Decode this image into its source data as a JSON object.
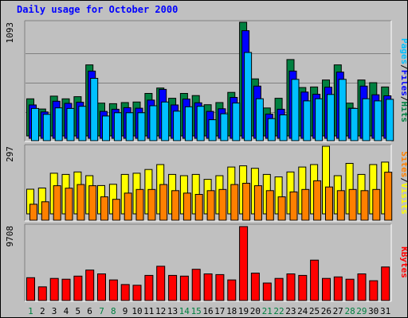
{
  "title": "Daily usage for October 2000",
  "colors": {
    "hits": "#008040",
    "files": "#0000ff",
    "pages": "#00c0ff",
    "visits": "#ffff00",
    "sites": "#ff8000",
    "kbytes": "#ff0000",
    "weekday_label": "#000000",
    "weekend_label": "#008040",
    "background": "#c0c0c0",
    "plot_bg": "#c0c0c0",
    "title": "#0000ff"
  },
  "chart_data": [
    {
      "type": "bar",
      "panel": "hits_files_pages",
      "ymax_label": "1093",
      "ylim": [
        0,
        1093
      ],
      "categories": [
        "1",
        "2",
        "3",
        "4",
        "5",
        "6",
        "7",
        "8",
        "9",
        "10",
        "11",
        "12",
        "13",
        "14",
        "15",
        "16",
        "17",
        "18",
        "19",
        "20",
        "21",
        "22",
        "23",
        "24",
        "25",
        "26",
        "27",
        "28",
        "29",
        "30",
        "31"
      ],
      "weekend": [
        1,
        7,
        8,
        14,
        15,
        21,
        22,
        28,
        29
      ],
      "legend": [
        {
          "text": "Pages",
          "color": "#00c0ff"
        },
        {
          "text": "/",
          "color": "#000000"
        },
        {
          "text": "Files",
          "color": "#0000ff"
        },
        {
          "text": "/",
          "color": "#000000"
        },
        {
          "text": "Hits",
          "color": "#008040"
        }
      ],
      "series": [
        {
          "name": "Hits",
          "color": "#008040",
          "values": [
            345,
            250,
            370,
            345,
            365,
            660,
            305,
            300,
            310,
            315,
            395,
            445,
            350,
            395,
            375,
            290,
            310,
            405,
            1093,
            530,
            260,
            350,
            710,
            450,
            455,
            520,
            660,
            305,
            520,
            495,
            455
          ]
        },
        {
          "name": "Files",
          "color": "#0000ff",
          "values": [
            310,
            245,
            345,
            325,
            335,
            625,
            250,
            270,
            285,
            280,
            355,
            455,
            310,
            365,
            330,
            250,
            275,
            380,
            1000,
            485,
            225,
            270,
            625,
            430,
            410,
            475,
            615,
            280,
            485,
            405,
            395
          ]
        },
        {
          "name": "Pages",
          "color": "#00c0ff",
          "values": [
            300,
            245,
            305,
            300,
            320,
            580,
            230,
            260,
            260,
            260,
            325,
            360,
            275,
            315,
            320,
            195,
            250,
            350,
            820,
            390,
            205,
            240,
            570,
            370,
            390,
            430,
            570,
            300,
            390,
            370,
            385
          ]
        }
      ]
    },
    {
      "type": "bar",
      "panel": "visits_sites",
      "ymax_label": "297",
      "ylim": [
        0,
        297
      ],
      "categories": [
        "1",
        "2",
        "3",
        "4",
        "5",
        "6",
        "7",
        "8",
        "9",
        "10",
        "11",
        "12",
        "13",
        "14",
        "15",
        "16",
        "17",
        "18",
        "19",
        "20",
        "21",
        "22",
        "23",
        "24",
        "25",
        "26",
        "27",
        "28",
        "29",
        "30",
        "31"
      ],
      "legend": [
        {
          "text": "Sites",
          "color": "#ff8000"
        },
        {
          "text": "/",
          "color": "#000000"
        },
        {
          "text": "Visits",
          "color": "#ffff00"
        }
      ],
      "series": [
        {
          "name": "Visits",
          "color": "#ffff00",
          "values": [
            100,
            105,
            165,
            160,
            170,
            155,
            115,
            120,
            160,
            165,
            180,
            200,
            160,
            155,
            160,
            140,
            155,
            190,
            195,
            185,
            160,
            150,
            170,
            190,
            200,
            297,
            155,
            205,
            160,
            200,
            210
          ]
        },
        {
          "name": "Sites",
          "color": "#ff8000",
          "values": [
            65,
            75,
            140,
            130,
            145,
            140,
            95,
            85,
            110,
            125,
            125,
            145,
            120,
            110,
            105,
            120,
            125,
            145,
            150,
            140,
            120,
            95,
            115,
            125,
            160,
            135,
            120,
            125,
            120,
            125,
            195
          ]
        }
      ]
    },
    {
      "type": "bar",
      "panel": "kbytes",
      "ymax_label": "9708",
      "ylim": [
        0,
        9708
      ],
      "categories": [
        "1",
        "2",
        "3",
        "4",
        "5",
        "6",
        "7",
        "8",
        "9",
        "10",
        "11",
        "12",
        "13",
        "14",
        "15",
        "16",
        "17",
        "18",
        "19",
        "20",
        "21",
        "22",
        "23",
        "24",
        "25",
        "26",
        "27",
        "28",
        "29",
        "30",
        "31"
      ],
      "legend": [
        {
          "text": "KBytes",
          "color": "#ff0000"
        }
      ],
      "series": [
        {
          "name": "KBytes",
          "color": "#ff0000",
          "values": [
            3000,
            1800,
            2900,
            2800,
            3200,
            4000,
            3500,
            2700,
            2100,
            2000,
            3300,
            4500,
            3300,
            3200,
            4100,
            3500,
            3400,
            2700,
            9708,
            3600,
            2300,
            2900,
            3500,
            3300,
            5300,
            2900,
            3100,
            2800,
            3500,
            2600,
            4400
          ]
        }
      ]
    }
  ]
}
